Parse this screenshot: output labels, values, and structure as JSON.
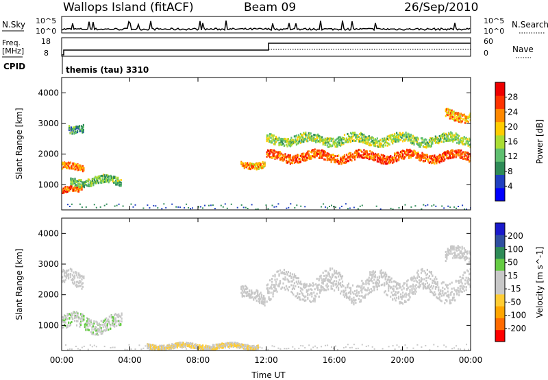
{
  "header": {
    "station": "Wallops Island (fitACF)",
    "beam": "Beam 09",
    "date": "26/Sep/2010"
  },
  "strip_panels": {
    "nsky_label": "N.Sky",
    "nsky_ticks": [
      "10^5",
      "10^0"
    ],
    "nsearch_label": "N.Search",
    "nsearch_ticks": [
      "10^5",
      "10^0"
    ],
    "freq_label_line1": "Freq.",
    "freq_label_line2": "[MHz]",
    "freq_ticks": [
      "18",
      "8"
    ],
    "nave_label": "Nave",
    "nave_ticks": [
      "60",
      "0"
    ],
    "cpid_label": "CPID",
    "cpid_value": "themis (tau) 3310"
  },
  "colors": {
    "power_scale": [
      "#0000ff",
      "#2040c0",
      "#2e8b57",
      "#5fbf70",
      "#aadd33",
      "#ffcc00",
      "#ff8800",
      "#ff3300",
      "#ee0000"
    ],
    "velocity_scale": [
      "#ff0000",
      "#ff6a00",
      "#ffa500",
      "#ffcc33",
      "#c8c8c8",
      "#c8c8c8",
      "#66cc44",
      "#2e8b57",
      "#2f4fa0",
      "#1a1acc"
    ]
  },
  "chart_data": [
    {
      "type": "heatmap",
      "title": "Power",
      "xlabel": "",
      "ylabel": "Slant Range [km]",
      "x_ticks": [
        "00:00",
        "04:00",
        "08:00",
        "12:00",
        "16:00",
        "20:00",
        "00:00"
      ],
      "x_range_hours": [
        0,
        24
      ],
      "y_ticks": [
        "4000",
        "3000",
        "2000",
        "1000"
      ],
      "ylim": [
        180,
        4500
      ],
      "colorbar_label": "Power [dB]",
      "colorbar_ticks": [
        "28",
        "24",
        "20",
        "16",
        "12",
        "8",
        "4"
      ],
      "colorbar_range": [
        0,
        30
      ],
      "echo_bands": [
        {
          "t_start": 0.0,
          "t_end": 1.2,
          "range_center": 850,
          "width": 180,
          "value": 24
        },
        {
          "t_start": 0.0,
          "t_end": 1.3,
          "range_center": 1600,
          "width": 200,
          "value": 22
        },
        {
          "t_start": 0.5,
          "t_end": 3.5,
          "range_center": 1150,
          "width": 260,
          "value": 12
        },
        {
          "t_start": 0.4,
          "t_end": 1.3,
          "range_center": 2900,
          "width": 250,
          "value": 10
        },
        {
          "t_start": 10.5,
          "t_end": 11.9,
          "range_center": 1700,
          "width": 200,
          "value": 20
        },
        {
          "t_start": 12.0,
          "t_end": 24.0,
          "range_center": 1950,
          "width": 280,
          "value": 24
        },
        {
          "t_start": 12.0,
          "t_end": 24.0,
          "range_center": 2500,
          "width": 300,
          "value": 14
        },
        {
          "t_start": 22.5,
          "t_end": 24.0,
          "range_center": 3300,
          "width": 300,
          "value": 20
        }
      ]
    },
    {
      "type": "heatmap",
      "title": "Velocity",
      "xlabel": "Time UT",
      "ylabel": "Slant Range [km]",
      "x_ticks": [
        "00:00",
        "04:00",
        "08:00",
        "12:00",
        "16:00",
        "20:00",
        "00:00"
      ],
      "x_range_hours": [
        0,
        24
      ],
      "y_ticks": [
        "4000",
        "3000",
        "2000",
        "1000"
      ],
      "ylim": [
        180,
        4500
      ],
      "colorbar_label": "Velocity [m s^-1]",
      "colorbar_ticks": [
        "200",
        "100",
        "50",
        "15",
        "-15",
        "-50",
        "-100",
        "-200"
      ],
      "colorbar_range": [
        -250,
        250
      ],
      "echo_bands": [
        {
          "t_start": 0.0,
          "t_end": 3.5,
          "range_center": 1100,
          "width": 450,
          "value": 40
        },
        {
          "t_start": 0.0,
          "t_end": 1.3,
          "range_center": 2500,
          "width": 500,
          "value": 0
        },
        {
          "t_start": 10.5,
          "t_end": 11.9,
          "range_center": 2000,
          "width": 400,
          "value": 0
        },
        {
          "t_start": 12.0,
          "t_end": 24.0,
          "range_center": 2300,
          "width": 700,
          "value": 0
        },
        {
          "t_start": 5.0,
          "t_end": 11.5,
          "range_center": 350,
          "width": 150,
          "value": -50
        },
        {
          "t_start": 22.5,
          "t_end": 24.0,
          "range_center": 3300,
          "width": 400,
          "value": 0
        }
      ]
    }
  ]
}
